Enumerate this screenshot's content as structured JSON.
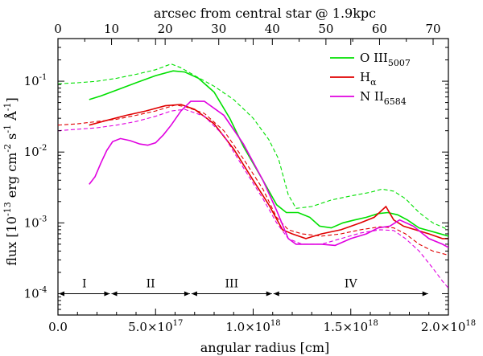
{
  "chart_data": {
    "type": "line",
    "title": "",
    "xlabel": "angular radius [cm]",
    "ylabel": "flux [10^-13 erg cm^-2 s^-1 Å^-1]",
    "ylabel_parts": {
      "base": "flux [10",
      "e1": "-13",
      "mid1": " erg cm",
      "e2": "-2",
      "mid2": " s",
      "e3": "-1",
      "mid3": " Å",
      "e4": "-1",
      "end": "]"
    },
    "xlim": [
      0,
      2e+18
    ],
    "ylim": [
      5e-05,
      0.4
    ],
    "yscale": "log",
    "x_ticks": [
      {
        "value": 0,
        "label": "0.0"
      },
      {
        "value": 5e+17,
        "label": "5.0×10",
        "exp": "17"
      },
      {
        "value": 1e+18,
        "label": "1.0×10",
        "exp": "18"
      },
      {
        "value": 1.5e+18,
        "label": "1.5×10",
        "exp": "18"
      },
      {
        "value": 2e+18,
        "label": "2.0×10",
        "exp": "18"
      }
    ],
    "y_ticks": [
      {
        "value": 0.0001,
        "label": "10",
        "exp": "-4"
      },
      {
        "value": 0.001,
        "label": "10",
        "exp": "-3"
      },
      {
        "value": 0.01,
        "label": "10",
        "exp": "-2"
      },
      {
        "value": 0.1,
        "label": "10",
        "exp": "-1"
      }
    ],
    "top_axis": {
      "label": "arcsec from central star @ 1.9kpc",
      "range": [
        0,
        72.85
      ],
      "ticks": [
        0,
        10,
        20,
        30,
        40,
        50,
        60,
        70
      ]
    },
    "legend": {
      "placement": "top-right",
      "entries": [
        {
          "name": "O III",
          "sub": "5007",
          "color": "#00e000"
        },
        {
          "name": "H",
          "sub": "α",
          "color": "#e00000"
        },
        {
          "name": "N II",
          "sub": "6584",
          "color": "#e000e0"
        }
      ]
    },
    "regions": [
      {
        "label": "I",
        "from": 0,
        "to": 2.7e+17
      },
      {
        "label": "II",
        "from": 2.7e+17,
        "to": 6.8e+17
      },
      {
        "label": "III",
        "from": 6.8e+17,
        "to": 1.1e+18
      },
      {
        "label": "IV",
        "from": 1.1e+18,
        "to": 1.9e+18
      }
    ],
    "region_y": 0.0001,
    "series": [
      {
        "name": "O III 5007 observed",
        "color": "#00e000",
        "style": "solid",
        "x": [
          1.6e+17,
          2.2e+17,
          3e+17,
          4e+17,
          5e+17,
          5.9e+17,
          6.5e+17,
          7.2e+17,
          8e+17,
          8.8e+17,
          9.5e+17,
          1.05e+18,
          1.12e+18,
          1.17e+18,
          1.23e+18,
          1.29e+18,
          1.34e+18,
          1.4e+18,
          1.46e+18,
          1.52e+18,
          1.58e+18,
          1.64e+18,
          1.69e+18,
          1.74e+18,
          1.79e+18,
          1.85e+18,
          1.92e+18,
          2e+18
        ],
        "y": [
          0.055,
          0.062,
          0.075,
          0.095,
          0.12,
          0.14,
          0.135,
          0.11,
          0.07,
          0.03,
          0.012,
          0.004,
          0.0018,
          0.0014,
          0.0014,
          0.0012,
          0.0009,
          0.00085,
          0.001,
          0.0011,
          0.0012,
          0.00135,
          0.0014,
          0.0013,
          0.0011,
          0.00085,
          0.00075,
          0.00065
        ]
      },
      {
        "name": "O III 5007 model",
        "color": "#00e000",
        "style": "dashed",
        "x": [
          0,
          1e+17,
          2e+17,
          3e+17,
          4e+17,
          5e+17,
          5.8e+17,
          6.3e+17,
          7e+17,
          8e+17,
          9e+17,
          1e+18,
          1.08e+18,
          1.13e+18,
          1.18e+18,
          1.22e+18,
          1.3e+18,
          1.4e+18,
          1.5e+18,
          1.6e+18,
          1.66e+18,
          1.72e+18,
          1.78e+18,
          1.85e+18,
          1.92e+18,
          2e+18
        ],
        "y": [
          0.092,
          0.095,
          0.1,
          0.11,
          0.125,
          0.145,
          0.175,
          0.155,
          0.12,
          0.085,
          0.055,
          0.03,
          0.015,
          0.008,
          0.0025,
          0.0016,
          0.0017,
          0.0021,
          0.0024,
          0.0027,
          0.003,
          0.0028,
          0.0022,
          0.0014,
          0.001,
          0.0008
        ]
      },
      {
        "name": "H alpha observed",
        "color": "#e00000",
        "style": "solid",
        "x": [
          1.6e+17,
          2.5e+17,
          3.5e+17,
          4.5e+17,
          5.5e+17,
          6.3e+17,
          7e+17,
          8e+17,
          9e+17,
          1e+18,
          1.08e+18,
          1.15e+18,
          1.2e+18,
          1.27e+18,
          1.35e+18,
          1.45e+18,
          1.55e+18,
          1.62e+18,
          1.68e+18,
          1.72e+18,
          1.77e+18,
          1.83e+18,
          1.9e+18,
          1.97e+18,
          2e+18
        ],
        "y": [
          0.024,
          0.028,
          0.033,
          0.038,
          0.045,
          0.047,
          0.04,
          0.025,
          0.011,
          0.004,
          0.0018,
          0.0008,
          0.0007,
          0.0006,
          0.0007,
          0.0008,
          0.001,
          0.0012,
          0.0017,
          0.0011,
          0.0009,
          0.0008,
          0.0007,
          0.0006,
          0.0006
        ]
      },
      {
        "name": "H alpha model",
        "color": "#e00000",
        "style": "dashed",
        "x": [
          0,
          1e+17,
          2e+17,
          3e+17,
          4e+17,
          5e+17,
          6e+17,
          6.5e+17,
          7.5e+17,
          8.5e+17,
          9.5e+17,
          1.05e+18,
          1.12e+18,
          1.18e+18,
          1.25e+18,
          1.35e+18,
          1.45e+18,
          1.55e+18,
          1.65e+18,
          1.72e+18,
          1.78e+18,
          1.85e+18,
          1.92e+18,
          2e+18
        ],
        "y": [
          0.024,
          0.025,
          0.027,
          0.029,
          0.033,
          0.038,
          0.046,
          0.044,
          0.035,
          0.02,
          0.008,
          0.003,
          0.0012,
          0.0008,
          0.0007,
          0.00065,
          0.0007,
          0.0008,
          0.00088,
          0.00085,
          0.0007,
          0.0005,
          0.0004,
          0.00035
        ]
      },
      {
        "name": "N II 6584 observed",
        "color": "#e000e0",
        "style": "solid",
        "x": [
          1.6e+17,
          1.9e+17,
          2.2e+17,
          2.5e+17,
          2.8e+17,
          3.2e+17,
          3.7e+17,
          4.2e+17,
          4.6e+17,
          5e+17,
          5.4e+17,
          5.8e+17,
          6.3e+17,
          6.8e+17,
          7.5e+17,
          8.5e+17,
          9.5e+17,
          1.05e+18,
          1.12e+18,
          1.18e+18,
          1.22e+18,
          1.28e+18,
          1.35e+18,
          1.42e+18,
          1.5e+18,
          1.58e+18,
          1.64e+18,
          1.7e+18,
          1.75e+18,
          1.82e+18,
          1.9e+18,
          1.97e+18,
          2e+18
        ],
        "y": [
          0.0035,
          0.0045,
          0.007,
          0.0105,
          0.014,
          0.0155,
          0.0145,
          0.013,
          0.0125,
          0.0135,
          0.0175,
          0.024,
          0.038,
          0.052,
          0.052,
          0.033,
          0.013,
          0.004,
          0.0015,
          0.0006,
          0.0005,
          0.0005,
          0.0005,
          0.00048,
          0.0006,
          0.0007,
          0.00085,
          0.0009,
          0.0011,
          0.0009,
          0.0006,
          0.0005,
          0.00045
        ]
      },
      {
        "name": "N II 6584 model",
        "color": "#e000e0",
        "style": "dashed",
        "x": [
          0,
          1e+17,
          2e+17,
          3e+17,
          4e+17,
          5e+17,
          5.8e+17,
          6.5e+17,
          7.5e+17,
          8.5e+17,
          9.5e+17,
          1.05e+18,
          1.12e+18,
          1.18e+18,
          1.25e+18,
          1.35e+18,
          1.45e+18,
          1.55e+18,
          1.65e+18,
          1.72e+18,
          1.78e+18,
          1.85e+18,
          1.92e+18,
          1.97e+18,
          2e+18
        ],
        "y": [
          0.02,
          0.021,
          0.022,
          0.024,
          0.027,
          0.032,
          0.038,
          0.04,
          0.032,
          0.017,
          0.006,
          0.0022,
          0.001,
          0.0006,
          0.0005,
          0.0005,
          0.0006,
          0.00072,
          0.0008,
          0.00078,
          0.0006,
          0.0004,
          0.00023,
          0.00015,
          0.00012
        ]
      }
    ]
  }
}
